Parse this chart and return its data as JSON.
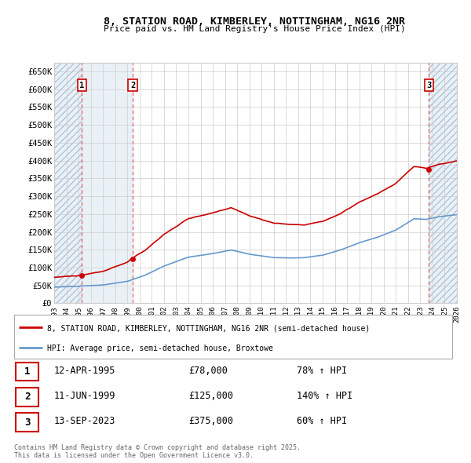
{
  "title": "8, STATION ROAD, KIMBERLEY, NOTTINGHAM, NG16 2NR",
  "subtitle": "Price paid vs. HM Land Registry's House Price Index (HPI)",
  "transactions": [
    {
      "label": "1",
      "date_str": "12-APR-1995",
      "year": 1995.28,
      "price": 78000
    },
    {
      "label": "2",
      "date_str": "11-JUN-1999",
      "year": 1999.44,
      "price": 125000
    },
    {
      "label": "3",
      "date_str": "13-SEP-2023",
      "year": 2023.7,
      "price": 375000
    }
  ],
  "legend_line1": "8, STATION ROAD, KIMBERLEY, NOTTINGHAM, NG16 2NR (semi-detached house)",
  "legend_line2": "HPI: Average price, semi-detached house, Broxtowe",
  "table_rows": [
    [
      "1",
      "12-APR-1995",
      "£78,000",
      "78% ↑ HPI"
    ],
    [
      "2",
      "11-JUN-1999",
      "£125,000",
      "140% ↑ HPI"
    ],
    [
      "3",
      "13-SEP-2023",
      "£375,000",
      "60% ↑ HPI"
    ]
  ],
  "footer": "Contains HM Land Registry data © Crown copyright and database right 2025.\nThis data is licensed under the Open Government Licence v3.0.",
  "xlim": [
    1993,
    2026
  ],
  "ylim": [
    0,
    675000
  ],
  "yticks": [
    0,
    50000,
    100000,
    150000,
    200000,
    250000,
    300000,
    350000,
    400000,
    450000,
    500000,
    550000,
    600000,
    650000
  ],
  "xticks": [
    1993,
    1994,
    1995,
    1996,
    1997,
    1998,
    1999,
    2000,
    2001,
    2002,
    2003,
    2004,
    2005,
    2006,
    2007,
    2008,
    2009,
    2010,
    2011,
    2012,
    2013,
    2014,
    2015,
    2016,
    2017,
    2018,
    2019,
    2020,
    2021,
    2022,
    2023,
    2024,
    2025,
    2026
  ],
  "line_color": "#cc0000",
  "hpi_color": "#6699cc",
  "bg_color": "#ffffff",
  "grid_color": "#cccccc",
  "label_box_color": "#cc0000",
  "vline_color": "#dd4444",
  "hatch_bg_color": "#dce8f0",
  "shade_color": "#dce8f0"
}
